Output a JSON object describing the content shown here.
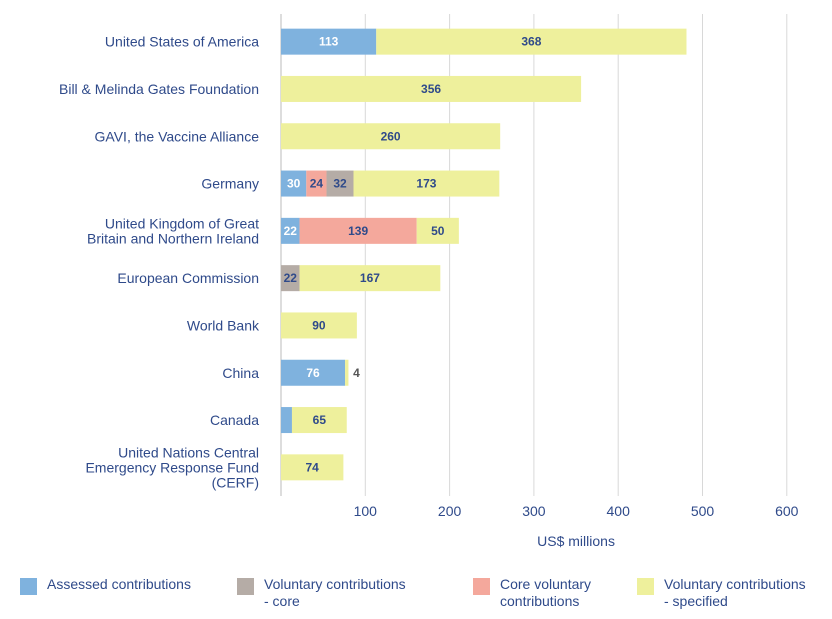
{
  "chart_data": {
    "type": "bar",
    "orientation": "horizontal",
    "stacked": true,
    "categories": [
      "United States of America",
      "Bill & Melinda Gates Foundation",
      "GAVI, the Vaccine Alliance",
      "Germany",
      "United Kingdom of Great\nBritain and Northern Ireland",
      "European Commission",
      "World Bank",
      "China",
      "Canada",
      "United Nations Central\nEmergency Response Fund\n(CERF)"
    ],
    "series": [
      {
        "name": "Assessed contributions",
        "color": "#7fb2de",
        "label_color": "#ffffff",
        "values": [
          113,
          0,
          0,
          30,
          22,
          0,
          0,
          76,
          13,
          0
        ]
      },
      {
        "name": "Core voluntary\ncontributions",
        "color": "#f4a89c",
        "label_color": "#2f4a8a",
        "values": [
          0,
          0,
          0,
          24,
          139,
          0,
          0,
          0,
          0,
          0
        ]
      },
      {
        "name": "Voluntary contributions\n- core",
        "color": "#b5aca6",
        "label_color": "#2f4a8a",
        "values": [
          0,
          0,
          0,
          32,
          0,
          22,
          0,
          0,
          0,
          0
        ]
      },
      {
        "name": "Voluntary contributions\n- specified",
        "color": "#eef09c",
        "label_color": "#2f4a8a",
        "values": [
          368,
          356,
          260,
          173,
          50,
          167,
          90,
          4,
          65,
          74
        ]
      }
    ],
    "xlabel": "US$ millions",
    "ylabel": "",
    "title": "",
    "xlim": [
      0,
      600
    ],
    "xticks": [
      100,
      200,
      300,
      400,
      500,
      600
    ],
    "grid": "vertical",
    "legend_position": "bottom"
  },
  "legend": [
    {
      "label": "Assessed contributions",
      "color": "#7fb2de"
    },
    {
      "label": "Voluntary contributions\n- core",
      "color": "#b5aca6"
    },
    {
      "label": "Core voluntary\ncontributions",
      "color": "#f4a89c"
    },
    {
      "label": "Voluntary contributions\n- specified",
      "color": "#eef09c"
    }
  ],
  "colors": {
    "text": "#2f4a8a",
    "grid": "#d8d8d8",
    "axis": "#bbbbbb"
  }
}
